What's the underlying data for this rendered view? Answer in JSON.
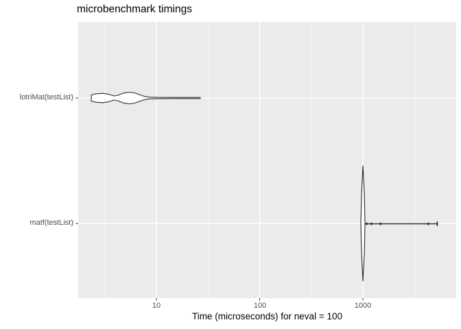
{
  "title": "microbenchmark timings",
  "x_axis": {
    "title": "Time (microseconds) for neval = 100",
    "scale": "log10",
    "ticks": [
      {
        "value": 10,
        "label": "10"
      },
      {
        "value": 100,
        "label": "100"
      },
      {
        "value": 1000,
        "label": "1000"
      }
    ],
    "minor_ticks": [
      3.162,
      31.62,
      316.23,
      3162.3
    ],
    "range": [
      1.75,
      8000
    ]
  },
  "y_axis": {
    "categories": [
      {
        "label": "lotriMat(testList)"
      },
      {
        "label": "matf(testList)"
      }
    ]
  },
  "colors": {
    "panel_bg": "#EBEBEB",
    "grid_major": "#FFFFFF",
    "grid_minor": "#FFFFFF",
    "violin_stroke": "#2A2A2A",
    "violin_fill": "#FFFFFF",
    "tail_line": "#333333",
    "marker": "#333333",
    "tick_mark": "#333333",
    "axis_text": "#4D4D4D",
    "title_text": "#000000"
  },
  "chart_data": {
    "type": "violin",
    "orientation": "horizontal",
    "x_unit": "microseconds",
    "x_scale": "log10",
    "categories": [
      "lotriMat(testList)",
      "matf(testList)"
    ],
    "series": [
      {
        "name": "lotriMat(testList)",
        "category_index": 0,
        "summary": {
          "min_us": 2.3,
          "max_us": 26.6,
          "shape": "bimodal, peaks near 3 and 5.5 us, long thin tail to ~27 us"
        },
        "profile": [
          [
            2.34,
            4.5
          ],
          [
            2.6,
            6.2
          ],
          [
            3.03,
            6.8
          ],
          [
            3.42,
            5.6
          ],
          [
            3.88,
            3.0
          ],
          [
            4.26,
            4.0
          ],
          [
            4.8,
            7.2
          ],
          [
            5.42,
            8.5
          ],
          [
            6.13,
            7.5
          ],
          [
            6.82,
            5.0
          ],
          [
            7.59,
            2.6
          ],
          [
            8.46,
            1.3
          ],
          [
            10.3,
            0.9
          ],
          [
            26.6,
            0.8
          ]
        ],
        "tail_line": null,
        "markers": [],
        "cap": null
      },
      {
        "name": "matf(testList)",
        "category_index": 1,
        "summary": {
          "min_us": 955,
          "max_us": 5250,
          "shape": "tight spike near 1000 us with outliers to ~5250 us"
        },
        "profile": [
          [
            955,
            0.5
          ],
          [
            970,
            42
          ],
          [
            1000,
            84
          ],
          [
            1035,
            42
          ],
          [
            1047,
            0.5
          ]
        ],
        "tail_line": {
          "from_us": 1040,
          "to_us": 5250
        },
        "markers": [
          1090,
          1210,
          1480,
          4300
        ],
        "cap": 5250
      }
    ]
  },
  "layout_note": "ggplot2-style grey panel violin plot, log10 time axis"
}
